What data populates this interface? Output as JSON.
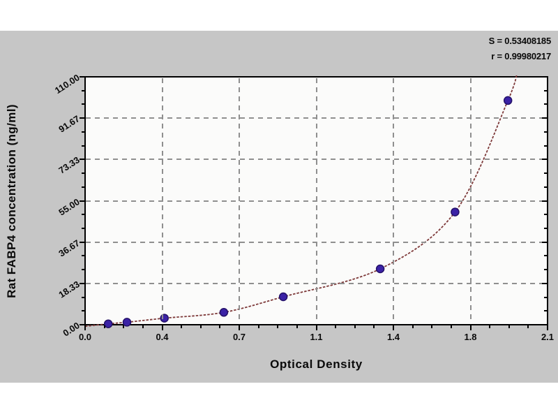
{
  "chart_data": {
    "type": "scatter",
    "xlabel": "Optical Density",
    "ylabel": "Rat FABP4 concentration (ng/ml)",
    "xlim": [
      0,
      2.1
    ],
    "ylim": [
      0,
      110
    ],
    "x_tick_values": [
      0,
      0.35,
      0.7,
      1.05,
      1.4,
      1.75,
      2.1
    ],
    "x_tick_labels": [
      "0.0",
      "0.4",
      "0.7",
      "1.1",
      "1.4",
      "1.8",
      "2.1"
    ],
    "y_tick_values": [
      0,
      18.33,
      36.67,
      55,
      73.33,
      91.67,
      110
    ],
    "y_tick_labels": [
      "0.00",
      "18.33",
      "36.67",
      "55.00",
      "73.33",
      "91.67",
      "110.00"
    ],
    "grid": true,
    "legend": "none",
    "points": [
      {
        "od": 0.105,
        "conc": 0.4
      },
      {
        "od": 0.19,
        "conc": 1.1
      },
      {
        "od": 0.36,
        "conc": 2.9
      },
      {
        "od": 0.63,
        "conc": 5.5
      },
      {
        "od": 0.9,
        "conc": 12.4
      },
      {
        "od": 1.34,
        "conc": 24.8
      },
      {
        "od": 1.68,
        "conc": 50.0
      },
      {
        "od": 1.92,
        "conc": 99.5
      }
    ],
    "fit": {
      "s_label": "S = 0.53408185",
      "r_label": "r = 0.99980217"
    },
    "colors": {
      "page_bg": "#ffffff",
      "panel_bg": "#c6c6c6",
      "plot_bg": "#fbfbfa",
      "frame": "#000000",
      "grid": "#8f8f8f",
      "curve": "#7e3a3a",
      "point_fill": "#3b22a6",
      "point_stroke": "#241168",
      "text": "#0a0a0a"
    }
  }
}
